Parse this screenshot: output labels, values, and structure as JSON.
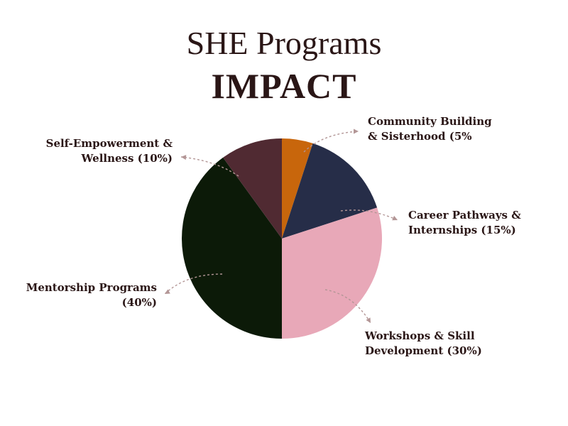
{
  "chart_data": {
    "type": "pie",
    "title": "SHE Programs",
    "subtitle": "IMPACT",
    "slices": [
      {
        "label_lines": [
          "Community Building",
          "& Sisterhood (5%"
        ],
        "value": 5,
        "color": "#c8660c"
      },
      {
        "label_lines": [
          "Career Pathways &",
          "Internships (15%)"
        ],
        "value": 15,
        "color": "#262d48"
      },
      {
        "label_lines": [
          "Workshops & Skill",
          "Development (30%)"
        ],
        "value": 30,
        "color": "#e8a8b8"
      },
      {
        "label_lines": [
          "Mentorship Programs",
          "(40%)"
        ],
        "value": 40,
        "color": "#0c1a08"
      },
      {
        "label_lines": [
          "Self-Empowerment &",
          "Wellness (10%)"
        ],
        "value": 10,
        "color": "#502a32"
      }
    ],
    "legend": "none"
  }
}
